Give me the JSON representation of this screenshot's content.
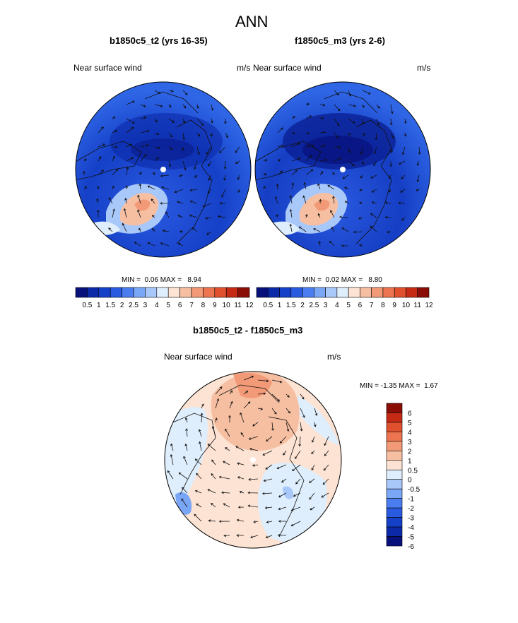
{
  "title": "ANN",
  "chart_data": [
    {
      "type": "heatmap",
      "subtitle": "b1850c5_t2 (yrs 16-35)",
      "variable": "Near surface wind",
      "units": "m/s",
      "min_label": "MIN =",
      "min": "0.06",
      "max_label": "MAX =",
      "max": "8.94",
      "levels": [
        "0.5",
        "1",
        "1.5",
        "2",
        "2.5",
        "3",
        "4",
        "5",
        "6",
        "7",
        "8",
        "9",
        "10",
        "11",
        "12"
      ],
      "colors": [
        "#08107a",
        "#0c2aa8",
        "#1540c8",
        "#2a5ae0",
        "#4a7df0",
        "#7aa6f6",
        "#a9c8fa",
        "#dfeefc",
        "#fde3d3",
        "#f7bfa2",
        "#f29a77",
        "#ec7450",
        "#e0502f",
        "#c42a14",
        "#8b0e06"
      ]
    },
    {
      "type": "heatmap",
      "subtitle": "f1850c5_m3 (yrs 2-6)",
      "variable": "Near surface wind",
      "units": "m/s",
      "min_label": "MIN =",
      "min": "0.02",
      "max_label": "MAX =",
      "max": "8.80",
      "levels": [
        "0.5",
        "1",
        "1.5",
        "2",
        "2.5",
        "3",
        "4",
        "5",
        "6",
        "7",
        "8",
        "9",
        "10",
        "11",
        "12"
      ],
      "colors": [
        "#08107a",
        "#0c2aa8",
        "#1540c8",
        "#2a5ae0",
        "#4a7df0",
        "#7aa6f6",
        "#a9c8fa",
        "#dfeefc",
        "#fde3d3",
        "#f7bfa2",
        "#f29a77",
        "#ec7450",
        "#e0502f",
        "#c42a14",
        "#8b0e06"
      ]
    },
    {
      "type": "heatmap",
      "subtitle": "b1850c5_t2 - f1850c5_m3",
      "variable": "Near surface wind",
      "units": "m/s",
      "min_label": "MIN =",
      "min": "-1.35",
      "max_label": "MAX =",
      "max": "1.67",
      "levels": [
        "6",
        "5",
        "4",
        "3",
        "2",
        "1",
        "0.5",
        "0",
        "-0.5",
        "-1",
        "-2",
        "-3",
        "-4",
        "-5",
        "-6"
      ],
      "colors": [
        "#8b0e06",
        "#c42a14",
        "#e0502f",
        "#ec7450",
        "#f29a77",
        "#f7bfa2",
        "#fde3d3",
        "#dfeefc",
        "#a9c8fa",
        "#7aa6f6",
        "#4a7df0",
        "#2a5ae0",
        "#1540c8",
        "#0c2aa8",
        "#08107a"
      ]
    }
  ]
}
